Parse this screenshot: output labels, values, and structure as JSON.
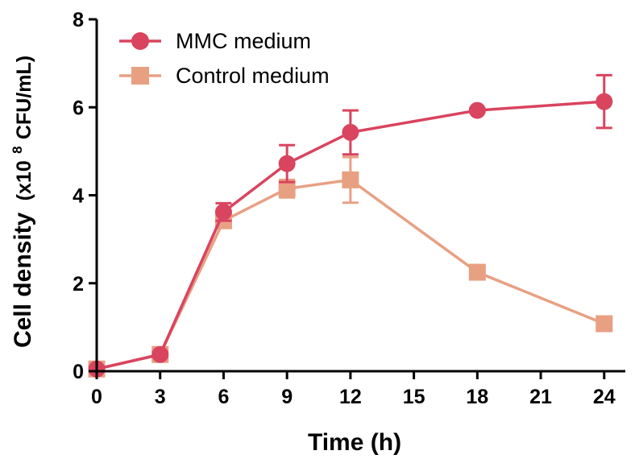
{
  "chart_data": {
    "type": "line",
    "title": "",
    "xlabel": "Time (h)",
    "ylabel": {
      "prefix": "Cell density",
      "unit_prefix": "(x10",
      "exponent": "8",
      "unit_suffix": " CFU/mL)"
    },
    "xlim": [
      0,
      25
    ],
    "ylim": [
      0,
      8
    ],
    "xticks": [
      0,
      3,
      6,
      9,
      12,
      15,
      18,
      21,
      24
    ],
    "yticks": [
      0,
      2,
      4,
      6,
      8
    ],
    "legend_position": "top-left",
    "series": [
      {
        "name": "Control medium",
        "marker": "square",
        "color": "#E8A083",
        "x": [
          0,
          3,
          6,
          9,
          12,
          18,
          24
        ],
        "y": [
          0.05,
          0.38,
          3.42,
          4.15,
          4.35,
          2.25,
          1.08
        ],
        "err": [
          0.03,
          0.05,
          0.12,
          0.2,
          0.52,
          0.1,
          0.08
        ]
      },
      {
        "name": "MMC medium",
        "marker": "circle",
        "color": "#D9445F",
        "x": [
          0,
          3,
          6,
          9,
          12,
          18,
          24
        ],
        "y": [
          0.05,
          0.38,
          3.62,
          4.72,
          5.43,
          5.93,
          6.13
        ],
        "err": [
          0.03,
          0.05,
          0.2,
          0.42,
          0.5,
          0.05,
          0.6
        ]
      }
    ]
  }
}
